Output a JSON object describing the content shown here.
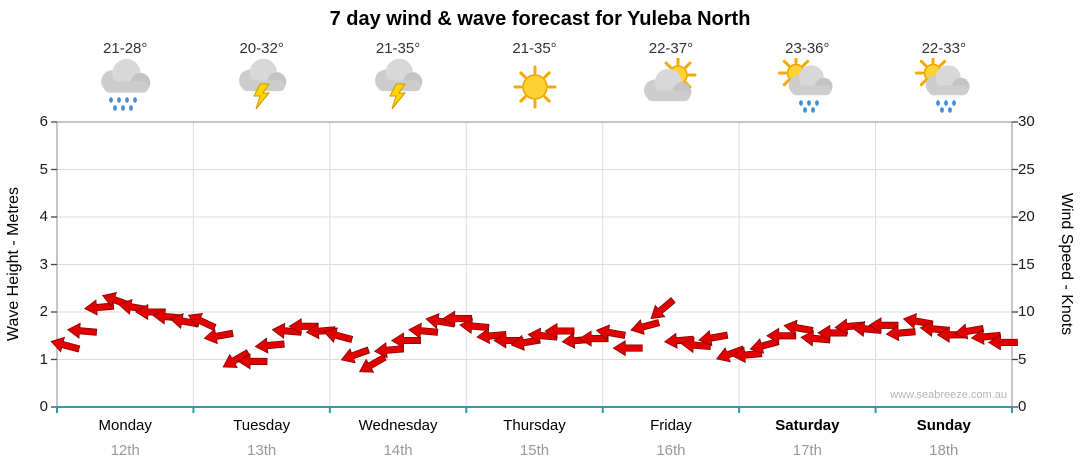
{
  "title": "7 day wind & wave forecast for Yuleba North",
  "watermark": "www.seabreeze.com.au",
  "axes": {
    "left_label": "Wave Height - Metres",
    "right_label": "Wind Speed - Knots",
    "left_ticks": [
      0,
      1,
      2,
      3,
      4,
      5,
      6
    ],
    "right_ticks": [
      0,
      5,
      10,
      15,
      20,
      25,
      30
    ],
    "left_range": [
      0,
      6
    ],
    "right_range": [
      0,
      30
    ]
  },
  "days": [
    {
      "name": "Monday",
      "date": "12th",
      "temp": "21-28°",
      "icon": "rain",
      "weekend": false
    },
    {
      "name": "Tuesday",
      "date": "13th",
      "temp": "20-32°",
      "icon": "storm",
      "weekend": false
    },
    {
      "name": "Wednesday",
      "date": "14th",
      "temp": "21-35°",
      "icon": "storm",
      "weekend": false
    },
    {
      "name": "Thursday",
      "date": "15th",
      "temp": "21-35°",
      "icon": "sunny",
      "weekend": false
    },
    {
      "name": "Friday",
      "date": "16th",
      "temp": "22-37°",
      "icon": "partly-cloudy",
      "weekend": false
    },
    {
      "name": "Saturday",
      "date": "17th",
      "temp": "23-36°",
      "icon": "sun-showers",
      "weekend": true
    },
    {
      "name": "Sunday",
      "date": "18th",
      "temp": "22-33°",
      "icon": "sun-showers",
      "weekend": true
    }
  ],
  "chart_data": {
    "type": "scatter",
    "marker": "wind-arrow",
    "title": "7 day wind & wave forecast for Yuleba North",
    "x_axis": "time, 3-hourly across 7 days (Mon 12th to Sun 18th)",
    "ylabel_left": "Wave Height - Metres",
    "ylim_left": [
      0,
      6
    ],
    "ylabel_right": "Wind Speed - Knots",
    "ylim_right": [
      0,
      30
    ],
    "grid": true,
    "series": [
      {
        "name": "Wind speed (knots)",
        "values": [
          6.5,
          8,
          10.5,
          11.2,
          10.5,
          10,
          9.5,
          9,
          9,
          7.5,
          5,
          4.8,
          6.5,
          8,
          8.5,
          8,
          7.5,
          5.5,
          4.5,
          6,
          7,
          8,
          9,
          9.3,
          8.5,
          7.5,
          7,
          6.8,
          7.5,
          8,
          7,
          7.2,
          7.8,
          6.2,
          8.5,
          10.3,
          7,
          6.5,
          7.3,
          5.6,
          5.5,
          6.5,
          7.5,
          8.3,
          7.2,
          7.8,
          8.5,
          8.2,
          8.6,
          7.8,
          9,
          8.2,
          7.6,
          8,
          7.4,
          6.8
        ],
        "directions_deg": [
          195,
          185,
          175,
          200,
          190,
          180,
          185,
          190,
          205,
          170,
          150,
          180,
          175,
          185,
          180,
          175,
          195,
          160,
          150,
          175,
          180,
          185,
          190,
          180,
          185,
          175,
          180,
          170,
          185,
          180,
          175,
          180,
          190,
          180,
          165,
          140,
          175,
          185,
          170,
          160,
          175,
          165,
          180,
          190,
          185,
          180,
          175,
          185,
          180,
          175,
          190,
          185,
          180,
          170,
          175,
          180
        ]
      }
    ],
    "marker_color": "#e00000"
  },
  "colors": {
    "arrow": "#e00000",
    "arrow_outline": "#7a0000",
    "axis_teal": "#2e9e9e",
    "grid": "#dcdcdc",
    "plot_border": "#8c8c8c",
    "tick_mark": "#444444",
    "date_text": "#999999",
    "temp_text": "#333333",
    "watermark_text": "#b5b5b5"
  }
}
